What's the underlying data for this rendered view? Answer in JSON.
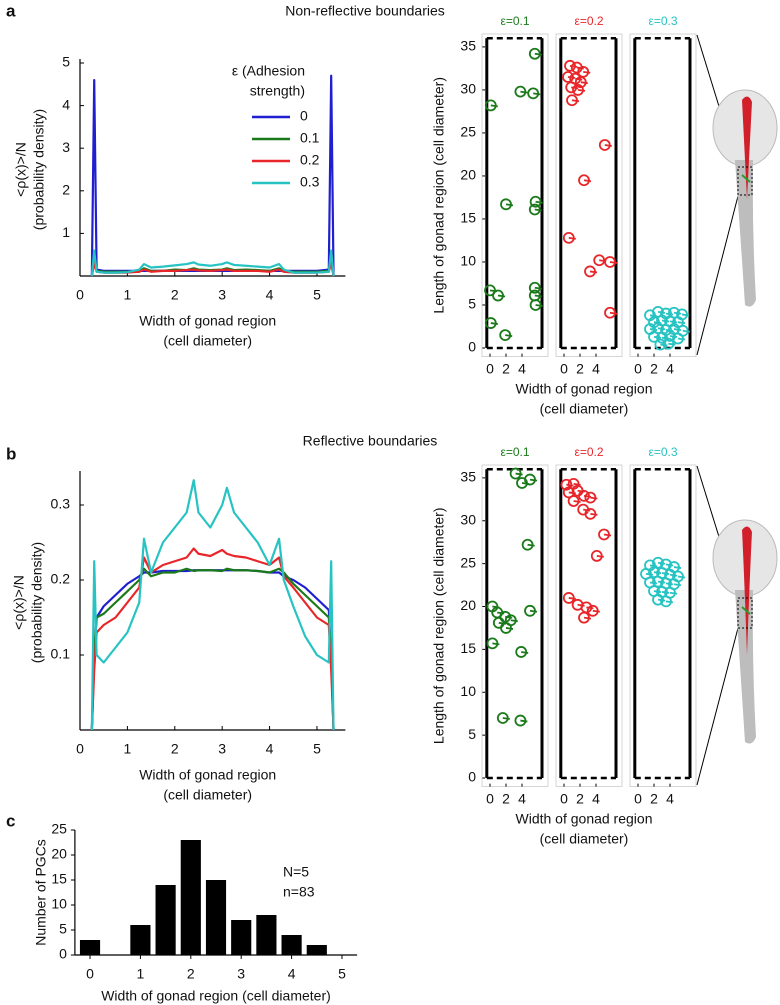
{
  "chart_data": [
    {
      "type": "line",
      "label": "a",
      "x_label": [
        "Width of gonad region",
        "(cell diameter)"
      ],
      "y_label": [
        "<ρ(x)>/N",
        "(probability density)"
      ],
      "legend_title": [
        "ε (Adhesion",
        "strength)"
      ],
      "x": [
        0.25,
        0.3,
        0.35,
        0.5,
        0.75,
        1.0,
        1.25,
        1.35,
        1.5,
        1.75,
        2.0,
        2.25,
        2.4,
        2.5,
        2.75,
        3.0,
        3.1,
        3.25,
        3.5,
        3.75,
        4.0,
        4.2,
        4.3,
        4.5,
        4.75,
        5.0,
        5.25,
        5.3,
        5.35
      ],
      "series": [
        {
          "name": "0",
          "color": "#1f1fd0",
          "values": [
            0,
            4.6,
            0.15,
            0.12,
            0.12,
            0.12,
            0.12,
            0.12,
            0.12,
            0.12,
            0.12,
            0.12,
            0.12,
            0.12,
            0.12,
            0.12,
            0.12,
            0.12,
            0.12,
            0.12,
            0.12,
            0.12,
            0.12,
            0.12,
            0.12,
            0.12,
            0.15,
            4.7,
            0
          ]
        },
        {
          "name": "0.1",
          "color": "#1a7a1a",
          "values": [
            0,
            0.5,
            0.12,
            0.1,
            0.1,
            0.1,
            0.1,
            0.18,
            0.12,
            0.12,
            0.15,
            0.14,
            0.18,
            0.15,
            0.14,
            0.15,
            0.18,
            0.14,
            0.15,
            0.14,
            0.12,
            0.18,
            0.12,
            0.1,
            0.1,
            0.1,
            0.12,
            0.5,
            0
          ]
        },
        {
          "name": "0.2",
          "color": "#e8262a",
          "values": [
            0,
            0.3,
            0.1,
            0.08,
            0.08,
            0.08,
            0.1,
            0.15,
            0.1,
            0.12,
            0.12,
            0.14,
            0.15,
            0.13,
            0.12,
            0.14,
            0.15,
            0.12,
            0.12,
            0.12,
            0.1,
            0.15,
            0.1,
            0.08,
            0.08,
            0.08,
            0.1,
            0.3,
            0
          ]
        },
        {
          "name": "0.3",
          "color": "#27c3c3",
          "values": [
            0,
            0.6,
            0.1,
            0.08,
            0.08,
            0.09,
            0.15,
            0.28,
            0.2,
            0.22,
            0.25,
            0.28,
            0.32,
            0.27,
            0.24,
            0.28,
            0.32,
            0.26,
            0.24,
            0.22,
            0.2,
            0.28,
            0.15,
            0.08,
            0.08,
            0.08,
            0.1,
            0.6,
            0
          ]
        }
      ],
      "xlim": [
        0,
        5.6
      ],
      "ylim": [
        0,
        5
      ],
      "xticks": [
        0,
        1,
        2,
        3,
        4,
        5
      ],
      "yticks": [
        1,
        2,
        3,
        4,
        5
      ]
    },
    {
      "type": "scatter",
      "title": "Non-reflective boundaries",
      "x_label": [
        "Width of gonad region",
        "(cell diameter)"
      ],
      "y_label": "Length of gonad region (cell diameter)",
      "boundary_x": [
        -0.4,
        6.5
      ],
      "boundary_y": [
        0,
        36
      ],
      "series": [
        {
          "name": "ε=0.1",
          "color": "#1a7a1a",
          "x": [
            0.1,
            5.6,
            3.8,
            5.4,
            2,
            5.7,
            5.6,
            0,
            1,
            5.6,
            5.6,
            5.7,
            0.1,
            1.9
          ],
          "y": [
            28.2,
            34.2,
            29.8,
            29.6,
            16.7,
            17,
            16.1,
            6.7,
            6.1,
            7,
            6.1,
            5,
            2.9,
            1.5
          ]
        },
        {
          "name": "ε=0.2",
          "color": "#e8262a",
          "x": [
            0.75,
            1.6,
            2.4,
            0.5,
            1.4,
            2.1,
            0.9,
            1.75,
            1,
            5.1,
            2.5,
            0.6,
            4.4,
            5.75,
            3.25,
            5.75
          ],
          "y": [
            32.8,
            32.6,
            32.1,
            31.5,
            31.3,
            30.9,
            30.3,
            30,
            28.8,
            23.6,
            19.5,
            12.8,
            10.2,
            10,
            8.9,
            4.1
          ]
        },
        {
          "name": "ε=0.3",
          "color": "#27c3c3",
          "x": [
            1.5,
            2.5,
            3.5,
            4.5,
            5.5,
            2,
            3,
            4,
            5,
            1.5,
            2.5,
            3.5,
            4.5,
            5.6,
            2,
            3,
            4,
            5,
            2.8,
            3.8
          ],
          "y": [
            3.8,
            4.2,
            4,
            4.1,
            3.9,
            3,
            3.2,
            3.1,
            3,
            2.2,
            2.3,
            2.1,
            2.2,
            2,
            1.3,
            1.2,
            1.4,
            1.1,
            0.4,
            0.5
          ]
        }
      ],
      "xlim": [
        -1,
        7.25
      ],
      "ylim": [
        -1,
        36.5
      ],
      "xticks": [
        0,
        2,
        4
      ],
      "yticks": [
        0,
        5,
        10,
        15,
        20,
        25,
        30,
        35
      ]
    },
    {
      "type": "line",
      "label": "b",
      "x_label": [
        "Width of gonad region",
        "(cell diameter)"
      ],
      "y_label": [
        "<ρ(x)>/N",
        "(probability density)"
      ],
      "x": [
        0.25,
        0.3,
        0.35,
        0.5,
        0.75,
        1.0,
        1.25,
        1.35,
        1.5,
        1.75,
        2.0,
        2.25,
        2.4,
        2.5,
        2.75,
        3.0,
        3.1,
        3.25,
        3.5,
        3.75,
        4.0,
        4.2,
        4.3,
        4.5,
        4.75,
        5.0,
        5.25,
        5.3,
        5.35
      ],
      "series": [
        {
          "color": "#1f1fd0",
          "values": [
            0,
            0.1,
            0.15,
            0.165,
            0.18,
            0.195,
            0.205,
            0.21,
            0.21,
            0.212,
            0.212,
            0.212,
            0.213,
            0.213,
            0.213,
            0.213,
            0.213,
            0.213,
            0.213,
            0.212,
            0.21,
            0.21,
            0.205,
            0.2,
            0.19,
            0.175,
            0.16,
            0.1,
            0
          ]
        },
        {
          "color": "#1a7a1a",
          "values": [
            0,
            0.1,
            0.15,
            0.155,
            0.17,
            0.185,
            0.2,
            0.215,
            0.205,
            0.21,
            0.21,
            0.215,
            0.212,
            0.213,
            0.213,
            0.212,
            0.215,
            0.213,
            0.213,
            0.212,
            0.21,
            0.215,
            0.21,
            0.195,
            0.18,
            0.165,
            0.15,
            0.1,
            0
          ]
        },
        {
          "color": "#e8262a",
          "values": [
            0,
            0.08,
            0.13,
            0.14,
            0.15,
            0.17,
            0.19,
            0.23,
            0.21,
            0.22,
            0.225,
            0.23,
            0.242,
            0.235,
            0.232,
            0.24,
            0.235,
            0.232,
            0.23,
            0.225,
            0.22,
            0.23,
            0.205,
            0.19,
            0.17,
            0.15,
            0.14,
            0.08,
            0
          ]
        },
        {
          "color": "#27c3c3",
          "values": [
            0,
            0.225,
            0.1,
            0.09,
            0.11,
            0.13,
            0.17,
            0.255,
            0.21,
            0.25,
            0.27,
            0.29,
            0.333,
            0.29,
            0.27,
            0.3,
            0.323,
            0.29,
            0.27,
            0.25,
            0.22,
            0.255,
            0.2,
            0.165,
            0.125,
            0.1,
            0.09,
            0.225,
            0
          ]
        }
      ],
      "xlim": [
        0,
        5.6
      ],
      "ylim": [
        0,
        0.34
      ],
      "xticks": [
        0,
        1,
        2,
        3,
        4,
        5
      ],
      "yticks": [
        0.1,
        0.2,
        0.3
      ]
    },
    {
      "type": "scatter",
      "title": "Reflective boundaries",
      "x_label": [
        "Width of gonad region",
        "(cell diameter)"
      ],
      "y_label": "Length of gonad region (cell diameter)",
      "boundary_x": [
        -0.4,
        6.5
      ],
      "boundary_y": [
        0,
        36
      ],
      "series": [
        {
          "name": "ε=0.1",
          "color": "#1a7a1a",
          "x": [
            3.2,
            5,
            4,
            4.7,
            0.3,
            0.9,
            1.9,
            1.1,
            2.6,
            2,
            5,
            0.3,
            3.9,
            1.6,
            3.8
          ],
          "y": [
            35.5,
            34.8,
            34.4,
            27.2,
            20,
            19.3,
            18.8,
            18.1,
            18.4,
            17.5,
            19.5,
            15.7,
            14.7,
            7,
            6.7
          ]
        },
        {
          "name": "ε=0.2",
          "color": "#e8262a",
          "x": [
            0.3,
            1.2,
            0.6,
            1.7,
            2.5,
            1.2,
            3.3,
            2.4,
            3.3,
            5,
            4.1,
            0.6,
            1.7,
            2.8,
            3.6,
            2.5
          ],
          "y": [
            34.2,
            34.3,
            33.3,
            33.5,
            32.9,
            32.3,
            32.7,
            31.3,
            30.8,
            28.4,
            25.9,
            21,
            20.2,
            19.9,
            19.5,
            18.7
          ]
        },
        {
          "name": "ε=0.3",
          "color": "#27c3c3",
          "x": [
            1.5,
            2.5,
            3.5,
            4.5,
            1,
            2,
            3,
            4,
            5,
            1.5,
            2.5,
            3.5,
            4.5,
            2,
            3,
            4,
            2.5,
            3.5
          ],
          "y": [
            24.8,
            25.1,
            24.9,
            24.6,
            23.8,
            24,
            23.9,
            23.7,
            23.5,
            22.8,
            22.9,
            22.7,
            22.6,
            21.8,
            21.7,
            21.6,
            20.8,
            20.6
          ]
        }
      ],
      "xlim": [
        -1,
        7.25
      ],
      "ylim": [
        -1,
        36.5
      ],
      "xticks": [
        0,
        2,
        4
      ],
      "yticks": [
        0,
        5,
        10,
        15,
        20,
        25,
        30,
        35
      ]
    },
    {
      "type": "bar",
      "label": "c",
      "x_label": "Width of gonad region (cell diameter)",
      "y_label": "Number of PGCs",
      "annotations": [
        "N=5",
        "n=83"
      ],
      "x": [
        0,
        0.5,
        1,
        1.5,
        2,
        2.5,
        3,
        3.5,
        4,
        4.5
      ],
      "values": [
        3,
        0,
        6,
        14,
        23,
        15,
        7,
        8,
        4,
        2
      ],
      "color": "#000000",
      "xlim": [
        -0.3,
        5.3
      ],
      "ylim": [
        0,
        25
      ],
      "xticks": [
        0,
        1,
        2,
        3,
        4,
        5
      ],
      "yticks": [
        0,
        5,
        10,
        15,
        20,
        25
      ]
    }
  ]
}
